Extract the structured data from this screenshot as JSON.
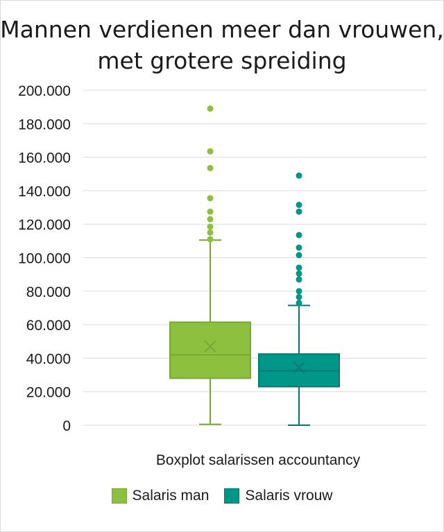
{
  "chart_data": {
    "type": "boxplot",
    "title_line1": "Mannen verdienen meer dan vrouwen,",
    "title_line2": "met grotere spreiding",
    "xlabel": "Boxplot salarissen accountancy",
    "ylabel": "",
    "ylim": [
      0,
      200000
    ],
    "yticks": [
      0,
      20000,
      40000,
      60000,
      80000,
      100000,
      120000,
      140000,
      160000,
      180000,
      200000
    ],
    "ytick_labels": [
      "0",
      "20.000",
      "40.000",
      "60.000",
      "80.000",
      "100.000",
      "120.000",
      "140.000",
      "160.000",
      "180.000",
      "200.000"
    ],
    "grid": true,
    "legend_position": "bottom",
    "series": [
      {
        "name": "Salaris man",
        "color": "#8dc03f",
        "stroke": "#78a833",
        "whisker_low": 500,
        "q1": 28000,
        "median": 42000,
        "q3": 61500,
        "whisker_high": 110500,
        "mean": 47000,
        "outliers": [
          111000,
          115000,
          118500,
          123000,
          127500,
          135500,
          153500,
          163500,
          189000
        ]
      },
      {
        "name": "Salaris vrouw",
        "color": "#009688",
        "stroke": "#007a6e",
        "whisker_low": 0,
        "q1": 23000,
        "median": 32500,
        "q3": 42500,
        "whisker_high": 71500,
        "mean": 34500,
        "outliers": [
          73000,
          76500,
          80000,
          87000,
          90500,
          94000,
          101500,
          106000,
          113500,
          127500,
          131500,
          149000
        ]
      }
    ]
  }
}
